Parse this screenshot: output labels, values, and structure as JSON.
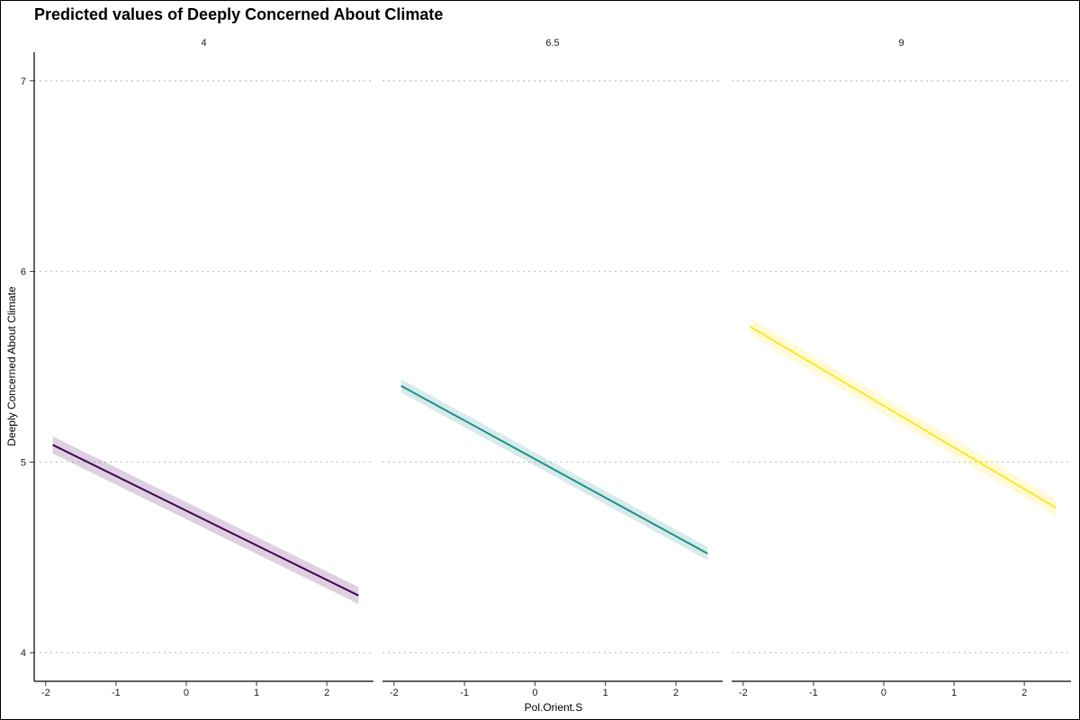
{
  "chart_data": {
    "type": "line",
    "title": "Predicted values of Deeply Concerned About Climate",
    "xlabel": "Pol.Orient.S",
    "ylabel": "Deeply Concerned About Climate",
    "xlim": [
      -2.1,
      2.6
    ],
    "ylim": [
      3.85,
      7.15
    ],
    "x_ticks": [
      -2,
      -1,
      0,
      1,
      2
    ],
    "y_ticks": [
      4,
      5,
      6,
      7
    ],
    "grid": "horizontal-dotted",
    "legend": "none",
    "panels": [
      {
        "label": "4",
        "color": "#440154",
        "ribbon_color": "#440154",
        "x": [
          -1.9,
          2.45
        ],
        "y": [
          5.09,
          4.3
        ],
        "ci_half_width": [
          0.045,
          0.045
        ]
      },
      {
        "label": "6.5",
        "color": "#21908C",
        "ribbon_color": "#21908C",
        "x": [
          -1.9,
          2.45
        ],
        "y": [
          5.4,
          4.52
        ],
        "ci_half_width": [
          0.035,
          0.035
        ]
      },
      {
        "label": "9",
        "color": "#FDE725",
        "ribbon_color": "#FDE725",
        "x": [
          -1.9,
          2.45
        ],
        "y": [
          5.71,
          4.76
        ],
        "ci_half_width": [
          0.045,
          0.045
        ]
      }
    ]
  }
}
